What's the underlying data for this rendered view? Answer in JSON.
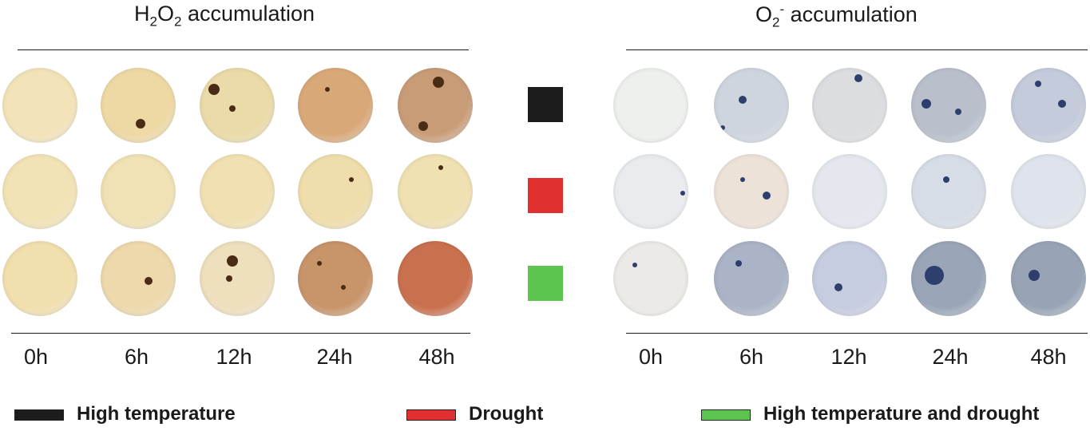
{
  "panels": {
    "left": {
      "title_main": "H",
      "title_sub1": "2",
      "title_mid": "O",
      "title_sub2": "2",
      "title_rest": " accumulation"
    },
    "right": {
      "title_main": "O",
      "title_sub": "2",
      "title_sup": "-",
      "title_rest": " accumulation"
    }
  },
  "timepoints": [
    "0h",
    "6h",
    "12h",
    "24h",
    "48h"
  ],
  "row_markers": [
    {
      "color": "#1c1c1c"
    },
    {
      "color": "#e03030"
    },
    {
      "color": "#5cc44f"
    }
  ],
  "legend": [
    {
      "label": "High temperature",
      "color": "#1c1c1c"
    },
    {
      "label": "Drought",
      "color": "#e03030"
    },
    {
      "label": "High temperature and drought",
      "color": "#5cc44f"
    }
  ]
}
